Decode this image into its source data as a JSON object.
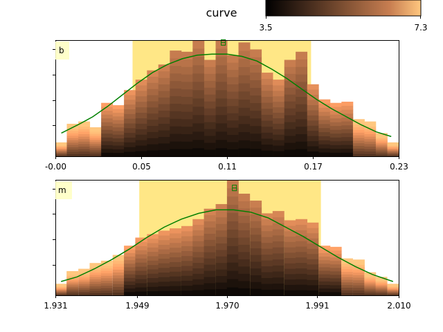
{
  "chart_data": {
    "title": "curve",
    "colorbar": {
      "colormap": "copper",
      "min": 3.5,
      "max": 7.3,
      "tick_labels": [
        "3.5",
        "7.3"
      ]
    },
    "line_color": "#008000",
    "band_color": "#ffe680",
    "panels": [
      {
        "label": "b",
        "type": "bar",
        "xlim": [
          -0.0,
          0.23
        ],
        "xtick_values": [
          0.0,
          0.0575,
          0.115,
          0.1725,
          0.23
        ],
        "xtick_labels": [
          "-0.00",
          "0.05",
          "0.11",
          "0.17",
          "0.23"
        ],
        "ylim": [
          0,
          10
        ],
        "highlight_span": [
          0.0517,
          0.1713
        ],
        "bar_width": 0.00767,
        "bars": [
          {
            "x": 0.0038,
            "value": 1.2
          },
          {
            "x": 0.0115,
            "value": 2.8
          },
          {
            "x": 0.0192,
            "value": 3.0
          },
          {
            "x": 0.0268,
            "value": 2.5
          },
          {
            "x": 0.0345,
            "value": 4.6
          },
          {
            "x": 0.0422,
            "value": 4.4
          },
          {
            "x": 0.0498,
            "value": 5.7
          },
          {
            "x": 0.0575,
            "value": 6.6
          },
          {
            "x": 0.0652,
            "value": 7.4
          },
          {
            "x": 0.0728,
            "value": 7.9
          },
          {
            "x": 0.0805,
            "value": 9.1
          },
          {
            "x": 0.0882,
            "value": 9.0
          },
          {
            "x": 0.0958,
            "value": 10.0
          },
          {
            "x": 0.1035,
            "value": 8.3
          },
          {
            "x": 0.1112,
            "value": 10.0
          },
          {
            "x": 0.1188,
            "value": 8.7
          },
          {
            "x": 0.1265,
            "value": 9.8
          },
          {
            "x": 0.1342,
            "value": 9.2
          },
          {
            "x": 0.1418,
            "value": 7.2
          },
          {
            "x": 0.1495,
            "value": 6.6
          },
          {
            "x": 0.1572,
            "value": 8.3
          },
          {
            "x": 0.1648,
            "value": 9.0
          },
          {
            "x": 0.1725,
            "value": 6.2
          },
          {
            "x": 0.1802,
            "value": 4.9
          },
          {
            "x": 0.1878,
            "value": 4.6
          },
          {
            "x": 0.1955,
            "value": 4.7
          },
          {
            "x": 0.2032,
            "value": 3.2
          },
          {
            "x": 0.2108,
            "value": 3.0
          },
          {
            "x": 0.2185,
            "value": 2.0
          },
          {
            "x": 0.2262,
            "value": 1.2
          }
        ],
        "curve": [
          {
            "x": 0.004,
            "y": 2.0
          },
          {
            "x": 0.015,
            "y": 2.7
          },
          {
            "x": 0.025,
            "y": 3.4
          },
          {
            "x": 0.035,
            "y": 4.3
          },
          {
            "x": 0.045,
            "y": 5.3
          },
          {
            "x": 0.055,
            "y": 6.3
          },
          {
            "x": 0.065,
            "y": 7.2
          },
          {
            "x": 0.075,
            "y": 7.9
          },
          {
            "x": 0.085,
            "y": 8.4
          },
          {
            "x": 0.095,
            "y": 8.7
          },
          {
            "x": 0.105,
            "y": 8.8
          },
          {
            "x": 0.115,
            "y": 8.8
          },
          {
            "x": 0.125,
            "y": 8.6
          },
          {
            "x": 0.135,
            "y": 8.2
          },
          {
            "x": 0.145,
            "y": 7.5
          },
          {
            "x": 0.155,
            "y": 6.7
          },
          {
            "x": 0.165,
            "y": 5.8
          },
          {
            "x": 0.175,
            "y": 4.9
          },
          {
            "x": 0.185,
            "y": 4.1
          },
          {
            "x": 0.195,
            "y": 3.4
          },
          {
            "x": 0.205,
            "y": 2.7
          },
          {
            "x": 0.215,
            "y": 2.1
          },
          {
            "x": 0.225,
            "y": 1.7
          }
        ],
        "marker": {
          "x": 0.1125,
          "y": 9.8
        }
      },
      {
        "label": "m",
        "type": "bar",
        "xlim": [
          1.931,
          2.01
        ],
        "xtick_values": [
          1.931,
          1.94975,
          1.9705,
          1.99125,
          2.01
        ],
        "xtick_labels": [
          "1.931",
          "1.949",
          "1.970",
          "1.991",
          "2.010"
        ],
        "ylim": [
          0,
          10
        ],
        "highlight_span": [
          1.9503,
          1.9921
        ],
        "bar_width": 0.002633,
        "bars": [
          {
            "x": 1.9323,
            "value": 1.0
          },
          {
            "x": 1.9349,
            "value": 2.1
          },
          {
            "x": 1.9376,
            "value": 2.3
          },
          {
            "x": 1.9402,
            "value": 2.8
          },
          {
            "x": 1.9428,
            "value": 3.0
          },
          {
            "x": 1.9455,
            "value": 3.5
          },
          {
            "x": 1.9481,
            "value": 4.3
          },
          {
            "x": 1.9507,
            "value": 5.0
          },
          {
            "x": 1.9534,
            "value": 5.3
          },
          {
            "x": 1.956,
            "value": 5.6
          },
          {
            "x": 1.9586,
            "value": 5.8
          },
          {
            "x": 1.9613,
            "value": 6.0
          },
          {
            "x": 1.9639,
            "value": 6.6
          },
          {
            "x": 1.9665,
            "value": 7.5
          },
          {
            "x": 1.9692,
            "value": 7.9
          },
          {
            "x": 1.9718,
            "value": 10.0
          },
          {
            "x": 1.9744,
            "value": 8.8
          },
          {
            "x": 1.9771,
            "value": 8.2
          },
          {
            "x": 1.9797,
            "value": 7.1
          },
          {
            "x": 1.9823,
            "value": 7.3
          },
          {
            "x": 1.985,
            "value": 6.5
          },
          {
            "x": 1.9876,
            "value": 6.6
          },
          {
            "x": 1.9902,
            "value": 6.3
          },
          {
            "x": 1.9929,
            "value": 4.3
          },
          {
            "x": 1.9955,
            "value": 4.2
          },
          {
            "x": 1.9981,
            "value": 3.2
          },
          {
            "x": 2.0008,
            "value": 3.1
          },
          {
            "x": 2.0034,
            "value": 2.0
          },
          {
            "x": 2.006,
            "value": 1.6
          },
          {
            "x": 2.0087,
            "value": 1.0
          }
        ],
        "curve": [
          {
            "x": 1.9323,
            "y": 1.2
          },
          {
            "x": 1.936,
            "y": 1.6
          },
          {
            "x": 1.94,
            "y": 2.3
          },
          {
            "x": 1.944,
            "y": 3.1
          },
          {
            "x": 1.948,
            "y": 4.0
          },
          {
            "x": 1.952,
            "y": 5.0
          },
          {
            "x": 1.956,
            "y": 5.9
          },
          {
            "x": 1.96,
            "y": 6.6
          },
          {
            "x": 1.964,
            "y": 7.1
          },
          {
            "x": 1.968,
            "y": 7.4
          },
          {
            "x": 1.972,
            "y": 7.4
          },
          {
            "x": 1.976,
            "y": 7.2
          },
          {
            "x": 1.98,
            "y": 6.7
          },
          {
            "x": 1.984,
            "y": 5.9
          },
          {
            "x": 1.988,
            "y": 5.1
          },
          {
            "x": 1.992,
            "y": 4.2
          },
          {
            "x": 1.996,
            "y": 3.3
          },
          {
            "x": 2.0,
            "y": 2.5
          },
          {
            "x": 2.004,
            "y": 1.8
          },
          {
            "x": 2.0087,
            "y": 1.2
          }
        ],
        "marker": {
          "x": 1.9722,
          "y": 9.3
        }
      }
    ]
  }
}
